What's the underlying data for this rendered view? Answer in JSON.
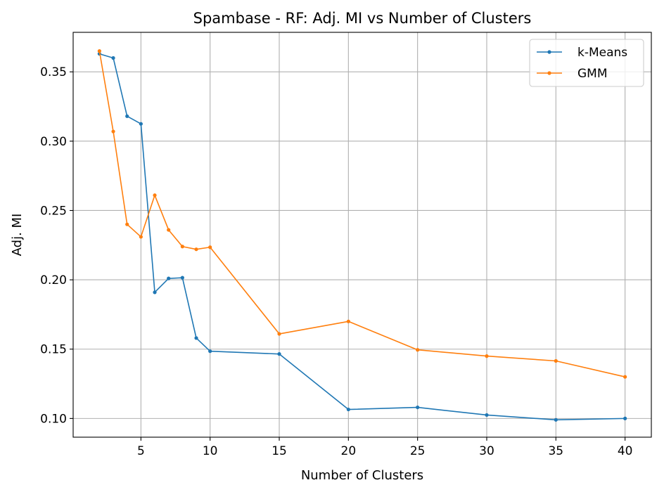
{
  "chart_data": {
    "type": "line",
    "title": "Spambase - RF: Adj. MI vs Number of Clusters",
    "xlabel": "Number of Clusters",
    "ylabel": "Adj. MI",
    "xlim": [
      0.1,
      41.9
    ],
    "ylim": [
      0.0865,
      0.3785
    ],
    "xticks": [
      5,
      10,
      15,
      20,
      25,
      30,
      35,
      40
    ],
    "xtick_labels": [
      "5",
      "10",
      "15",
      "20",
      "25",
      "30",
      "35",
      "40"
    ],
    "yticks": [
      0.1,
      0.15,
      0.2,
      0.25,
      0.3,
      0.35
    ],
    "ytick_labels": [
      "0.10",
      "0.15",
      "0.20",
      "0.25",
      "0.30",
      "0.35"
    ],
    "grid": true,
    "legend_position": "top-right",
    "x": [
      2,
      3,
      4,
      5,
      6,
      7,
      8,
      9,
      10,
      15,
      20,
      25,
      30,
      35,
      40
    ],
    "series": [
      {
        "name": "k-Means",
        "color": "#1f77b4",
        "values": [
          0.363,
          0.36,
          0.318,
          0.3125,
          0.191,
          0.201,
          0.2015,
          0.158,
          0.1485,
          0.1465,
          0.1065,
          0.108,
          0.1025,
          0.099,
          0.1
        ]
      },
      {
        "name": "GMM",
        "color": "#ff7f0e",
        "values": [
          0.365,
          0.307,
          0.24,
          0.231,
          0.261,
          0.236,
          0.224,
          0.222,
          0.2235,
          0.161,
          0.17,
          0.1495,
          0.145,
          0.1415,
          0.13
        ]
      }
    ]
  }
}
